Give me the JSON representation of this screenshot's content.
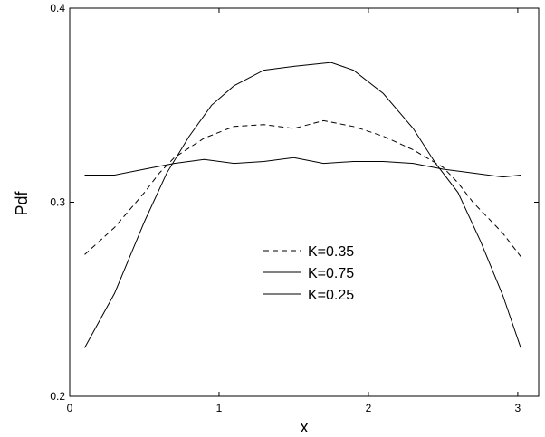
{
  "chart_data": {
    "type": "line",
    "xlabel": "x",
    "ylabel": "Pdf",
    "xlim": [
      0,
      3.14
    ],
    "ylim": [
      0.2,
      0.4
    ],
    "x_ticks": [
      "0",
      "1",
      "2",
      "3"
    ],
    "y_ticks": [
      "0.2",
      "0.3",
      "0.4"
    ],
    "legend_position": "center-right",
    "grid": false,
    "series": [
      {
        "name": "K=0.35",
        "dash": "dashed",
        "x": [
          0.1,
          0.3,
          0.5,
          0.6,
          0.7,
          0.9,
          1.1,
          1.3,
          1.5,
          1.7,
          1.9,
          2.1,
          2.3,
          2.5,
          2.6,
          2.7,
          2.9,
          3.02
        ],
        "y": [
          0.273,
          0.287,
          0.305,
          0.315,
          0.323,
          0.333,
          0.339,
          0.34,
          0.338,
          0.342,
          0.339,
          0.334,
          0.327,
          0.318,
          0.31,
          0.3,
          0.284,
          0.272
        ]
      },
      {
        "name": "K=0.75",
        "dash": "solid",
        "x": [
          0.1,
          0.3,
          0.5,
          0.65,
          0.8,
          0.95,
          1.1,
          1.3,
          1.5,
          1.75,
          1.9,
          2.1,
          2.3,
          2.45,
          2.6,
          2.75,
          2.9,
          3.02
        ],
        "y": [
          0.225,
          0.253,
          0.29,
          0.315,
          0.334,
          0.35,
          0.36,
          0.368,
          0.37,
          0.372,
          0.368,
          0.356,
          0.338,
          0.32,
          0.305,
          0.28,
          0.252,
          0.225
        ]
      },
      {
        "name": "K=0.25",
        "dash": "solid",
        "x": [
          0.1,
          0.3,
          0.5,
          0.7,
          0.9,
          1.1,
          1.3,
          1.5,
          1.7,
          1.9,
          2.1,
          2.3,
          2.5,
          2.7,
          2.9,
          3.02
        ],
        "y": [
          0.314,
          0.314,
          0.317,
          0.32,
          0.322,
          0.32,
          0.321,
          0.323,
          0.32,
          0.321,
          0.321,
          0.32,
          0.317,
          0.315,
          0.313,
          0.314
        ]
      }
    ]
  }
}
